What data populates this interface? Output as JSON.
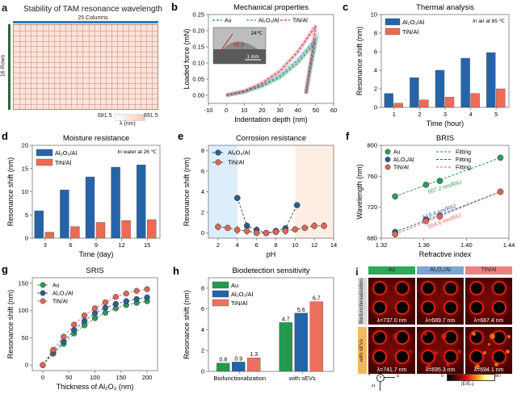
{
  "panels": {
    "a": {
      "label": "a",
      "title": "Stability of TAM resonance wavelength",
      "columns_label": "25 Columns",
      "rows_label": "16 Rows",
      "cols": 25,
      "rows": 16,
      "colorbar_min": "681.5",
      "colorbar_max": "691.5",
      "colorbar_label": "λ (nm)",
      "colors": {
        "columns_bar": "#2a7bbf",
        "rows_bar": "#1f6b3a",
        "cell": "#fbe3d8",
        "grid": "#c9958a"
      }
    },
    "b": {
      "label": "b",
      "inset_temp": "24℃",
      "inset_angle": "65.8",
      "inset_scale": "1 mm"
    },
    "c": {
      "label": "c",
      "annotation": "In air at 65 ℃"
    },
    "d": {
      "label": "d",
      "annotation": "In water at 26 ℃"
    },
    "e": {
      "label": "e"
    },
    "f": {
      "label": "f",
      "slopes": [
        "507.2 nm/RIU",
        "518.4 nm/RIU",
        "554.6 nm/RIU"
      ]
    },
    "g": {
      "label": "g"
    },
    "h": {
      "label": "h"
    },
    "i": {
      "label": "i",
      "columns": [
        "Au",
        "Al₂O₃/Al",
        "TiN/Al"
      ],
      "column_colors": [
        "#2ea85a",
        "#7aa6d6",
        "#f08080"
      ],
      "rows": [
        "Biofunctionalization",
        "with sEVs"
      ],
      "row_colors": [
        "#d8d8d8",
        "#f5b860"
      ],
      "wavelengths": [
        [
          "λ=737.0 nm",
          "λ=689.7 nm",
          "λ=687.4 nm"
        ],
        [
          "λ=741.7 nm",
          "λ=695.3 nm",
          "λ=694.1 nm"
        ]
      ],
      "colorbar_min": "0",
      "colorbar_max": "80",
      "colorbar_label": "|E/E₀|",
      "axis_k": "k",
      "axis_E": "E",
      "axis_H": "H"
    }
  },
  "chart_data": [
    {
      "id": "b",
      "type": "line",
      "title": "Mechanical properties",
      "xlabel": "Indentation depth (nm)",
      "ylabel": "Loaded force (mN)",
      "xlim": [
        -10,
        60
      ],
      "ylim": [
        -0.025,
        0.25
      ],
      "xticks": [
        -10,
        0,
        10,
        20,
        30,
        40,
        50,
        60
      ],
      "yticks": [
        0.0,
        0.05,
        0.1,
        0.15,
        0.2,
        0.25
      ],
      "ytick_labels": [
        "0.00",
        "0.05",
        "0.10",
        "0.15",
        "0.20",
        "0.25"
      ],
      "series": [
        {
          "name": "Au",
          "color": "#2e8b57",
          "loading": [
            [
              0,
              0
            ],
            [
              10,
              0.01
            ],
            [
              20,
              0.028
            ],
            [
              30,
              0.055
            ],
            [
              40,
              0.1
            ],
            [
              50,
              0.165
            ]
          ],
          "unloading": [
            [
              50,
              0.165
            ],
            [
              47,
              0.08
            ],
            [
              44.5,
              0.005
            ]
          ]
        },
        {
          "name": "Al₂O₃/Al",
          "color": "#3a9fb0",
          "loading": [
            [
              0,
              0
            ],
            [
              10,
              0.011
            ],
            [
              20,
              0.031
            ],
            [
              30,
              0.062
            ],
            [
              40,
              0.11
            ],
            [
              50,
              0.175
            ]
          ],
          "unloading": [
            [
              50,
              0.175
            ],
            [
              47,
              0.09
            ],
            [
              44.5,
              0.005
            ]
          ]
        },
        {
          "name": "TiN/Al",
          "color": "#c8304a",
          "loading": [
            [
              0,
              0
            ],
            [
              10,
              0.013
            ],
            [
              20,
              0.038
            ],
            [
              30,
              0.075
            ],
            [
              40,
              0.135
            ],
            [
              50,
              0.215
            ]
          ],
          "unloading": [
            [
              50,
              0.215
            ],
            [
              47,
              0.1
            ],
            [
              44.5,
              0.005
            ]
          ]
        }
      ]
    },
    {
      "id": "c",
      "type": "bar",
      "title": "Thermal analysis",
      "xlabel": "Time (hour)",
      "ylabel": "Resonance shift (nm)",
      "categories": [
        "1",
        "2",
        "3",
        "4",
        "5"
      ],
      "ylim": [
        0,
        10
      ],
      "yticks": [
        0,
        2,
        4,
        6,
        8,
        10
      ],
      "series": [
        {
          "name": "Al₂O₃/Al",
          "color": "#2564a8",
          "values": [
            1.5,
            3.2,
            4.0,
            5.3,
            5.9
          ]
        },
        {
          "name": "TiN/Al",
          "color": "#ee6a55",
          "values": [
            0.45,
            0.8,
            1.1,
            1.5,
            2.0
          ]
        }
      ],
      "legend": "top-left"
    },
    {
      "id": "d",
      "type": "bar",
      "title": "Moisture resistance",
      "xlabel": "Time (day)",
      "ylabel": "Resonance shift (nm)",
      "categories": [
        "3",
        "6",
        "9",
        "12",
        "15"
      ],
      "ylim": [
        0,
        20
      ],
      "yticks": [
        0,
        5,
        10,
        15,
        20
      ],
      "series": [
        {
          "name": "Al₂O₃/Al",
          "color": "#2564a8",
          "values": [
            5.9,
            10.4,
            13.2,
            15.3,
            15.8
          ]
        },
        {
          "name": "TiN/Al",
          "color": "#ee6a55",
          "values": [
            1.3,
            2.5,
            3.4,
            3.8,
            4.0
          ]
        }
      ],
      "legend": "top-left"
    },
    {
      "id": "e",
      "type": "scatter",
      "title": "Corrosion resistance",
      "xlabel": "pH",
      "ylabel": "Resonance shift (nm)",
      "xlim": [
        1,
        14
      ],
      "ylim": [
        -0.5,
        8.5
      ],
      "xticks": [
        2,
        4,
        6,
        8,
        10,
        12,
        14
      ],
      "yticks": [
        0,
        2,
        4,
        6,
        8
      ],
      "shaded": [
        {
          "range": [
            1,
            4
          ],
          "color": "#ddeefa"
        },
        {
          "range": [
            10,
            14
          ],
          "color": "#fdeee4"
        }
      ],
      "series": [
        {
          "name": "Al₂O₃/Al",
          "color": "#2a5f8f",
          "x": [
            4,
            5,
            6,
            7,
            8,
            9,
            10.2
          ],
          "y": [
            3.4,
            0.7,
            0.3,
            0.0,
            0.2,
            0.45,
            2.7
          ],
          "err": [
            0,
            0.3,
            0.35,
            0.25,
            0.3,
            0.3,
            0
          ]
        },
        {
          "name": "TiN/Al",
          "color": "#d9665a",
          "x": [
            2,
            3,
            4,
            5,
            6,
            7,
            8,
            9,
            10,
            11,
            12,
            13
          ],
          "y": [
            0.6,
            0.5,
            0.3,
            0.2,
            0.0,
            0.0,
            0.1,
            0.2,
            0.35,
            0.5,
            0.7,
            0.7
          ],
          "err": [
            0.35,
            0.2,
            0.4,
            0.4,
            0.3,
            0.3,
            0.3,
            0.4,
            0.2,
            0.2,
            0.35,
            0.35
          ]
        }
      ],
      "legend": "top-left"
    },
    {
      "id": "f",
      "type": "scatter",
      "title": "BRIS",
      "xlabel": "Refractive index",
      "ylabel": "Wavelength (nm)",
      "xlim": [
        1.32,
        1.44
      ],
      "ylim": [
        680,
        800
      ],
      "xticks": [
        1.32,
        1.36,
        1.4,
        1.44
      ],
      "yticks": [
        680,
        720,
        760,
        800
      ],
      "xtick_labels": [
        "1.32",
        "1.36",
        "1.40",
        "1.44"
      ],
      "series": [
        {
          "name": "Au",
          "color": "#2e9a5a",
          "x": [
            1.333,
            1.362,
            1.375,
            1.432
          ],
          "y": [
            734,
            749,
            754,
            784
          ],
          "fit_label": "Fitting"
        },
        {
          "name": "Al₂O₃/Al",
          "color": "#2a5f8f",
          "x": [
            1.333,
            1.362,
            1.375,
            1.432
          ],
          "y": [
            688,
            704,
            709,
            740
          ],
          "fit_label": "Fitting"
        },
        {
          "name": "TiN/Al",
          "color": "#d9665a",
          "x": [
            1.333,
            1.362,
            1.375,
            1.432
          ],
          "y": [
            685,
            702,
            708,
            740
          ],
          "fit_label": "Fitting"
        }
      ],
      "legend": "top-left"
    },
    {
      "id": "g",
      "type": "line",
      "title": "SRIS",
      "xlabel": "Thickness of Al₂O₃ (nm)",
      "ylabel": "Resonance shift (nm)",
      "xlim": [
        -20,
        220
      ],
      "ylim": [
        -10,
        160
      ],
      "xticks": [
        0,
        50,
        100,
        150,
        200
      ],
      "yticks": [
        0,
        50,
        100,
        150
      ],
      "x": [
        0,
        20,
        40,
        60,
        80,
        100,
        120,
        140,
        160,
        180,
        200
      ],
      "series": [
        {
          "name": "Au",
          "color": "#2e9a5a",
          "values": [
            0,
            21,
            39,
            58,
            73,
            86,
            96,
            104,
            110,
            114,
            117
          ]
        },
        {
          "name": "Al₂O₃/Al",
          "color": "#2a5f8f",
          "values": [
            0,
            24,
            43,
            64,
            81,
            95,
            105,
            112,
            117,
            121,
            124
          ]
        },
        {
          "name": "TiN/Al",
          "color": "#d9665a",
          "values": [
            0,
            28,
            52,
            74,
            91,
            104,
            115,
            125,
            131,
            136,
            139
          ]
        }
      ],
      "legend": "top-left"
    },
    {
      "id": "h",
      "type": "bar",
      "title": "Biodetection sensitivity",
      "xlabel": "",
      "ylabel": "Resonance shift (nm)",
      "categories": [
        "Biofunctionalization",
        "with sEVs"
      ],
      "ylim": [
        0,
        9
      ],
      "yticks": [
        0,
        2,
        4,
        6,
        8
      ],
      "series": [
        {
          "name": "Au",
          "color": "#219a4f",
          "values": [
            0.8,
            4.7
          ]
        },
        {
          "name": "Al₂O₃/Al",
          "color": "#2564a8",
          "values": [
            0.9,
            5.6
          ]
        },
        {
          "name": "TiN/Al",
          "color": "#f07060",
          "values": [
            1.3,
            6.7
          ]
        }
      ],
      "data_labels": [
        [
          "0.8",
          "4.7"
        ],
        [
          "0.9",
          "5.6"
        ],
        [
          "1.3",
          "6.7"
        ]
      ],
      "legend": "top-left"
    }
  ]
}
